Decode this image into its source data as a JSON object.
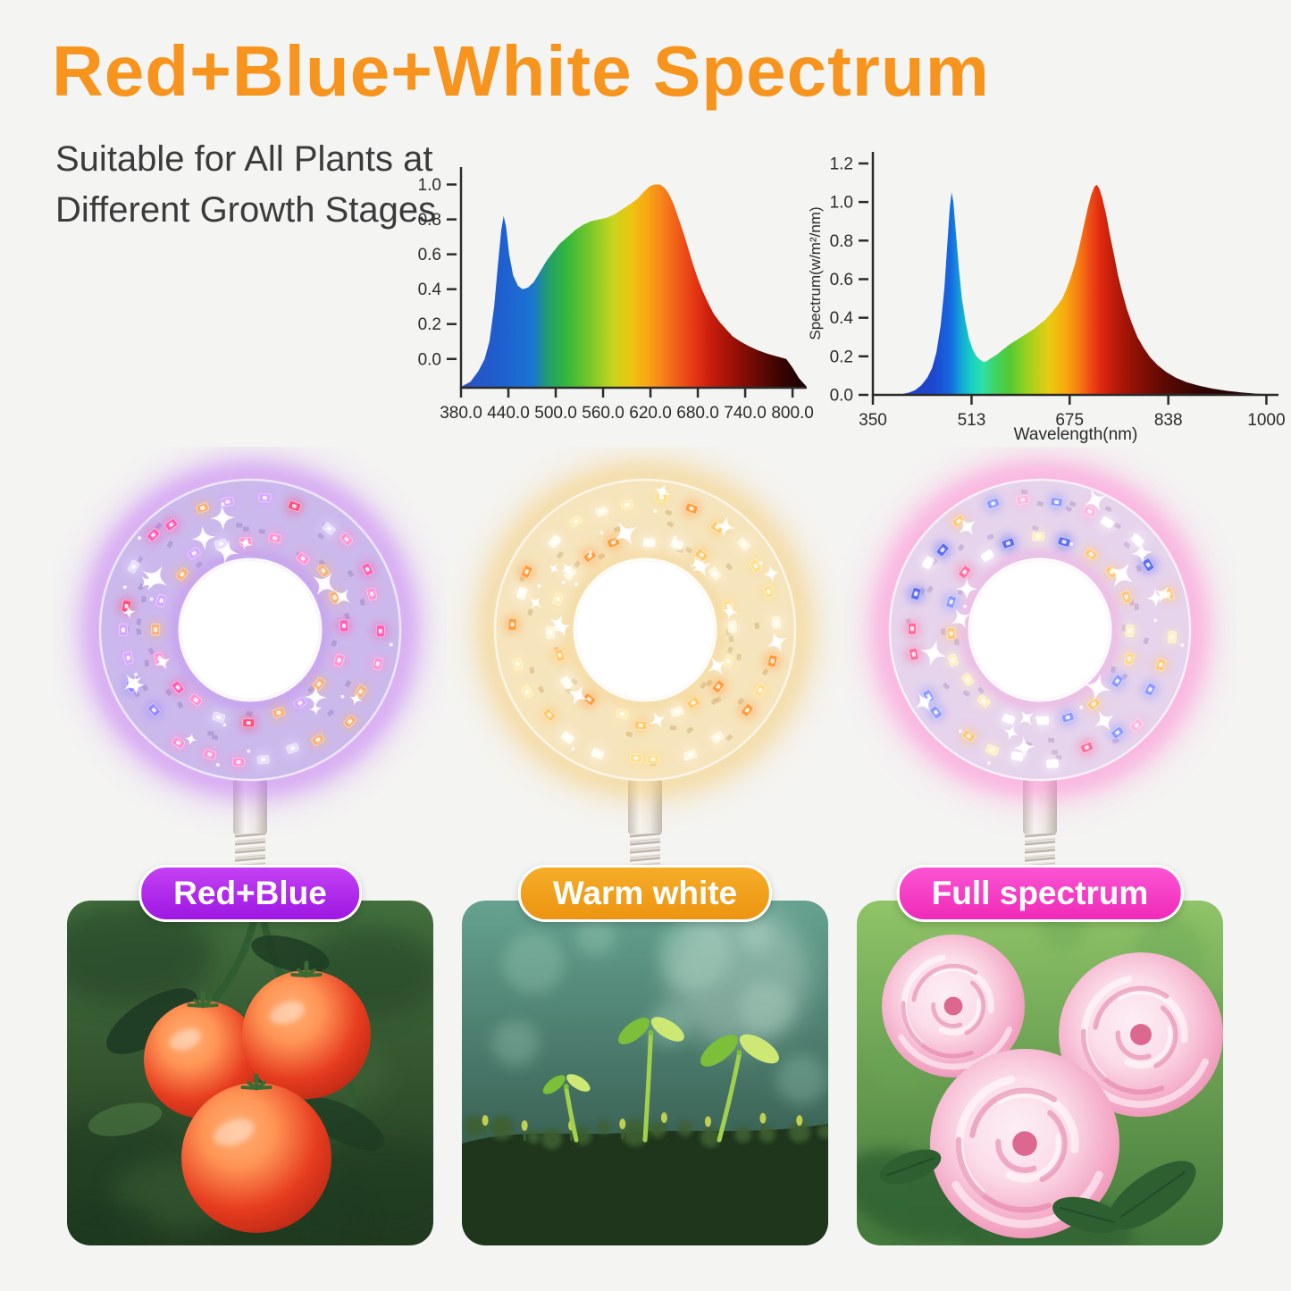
{
  "page": {
    "background": "#f4f4f2"
  },
  "header": {
    "title": "Red+Blue+White Spectrum",
    "title_color": "#f6941e",
    "subtitle": "Suitable for All Plants at Different Growth Stages",
    "subtitle_color": "#3b3b3b"
  },
  "chart_data": [
    {
      "type": "area",
      "title": "",
      "xlabel": "",
      "ylabel": "",
      "x_range": [
        380,
        818
      ],
      "x_ticks": [
        [
          380,
          "380.0"
        ],
        [
          440,
          "440.0"
        ],
        [
          500,
          "500.0"
        ],
        [
          560,
          "560.0"
        ],
        [
          620,
          "620.0"
        ],
        [
          680,
          "680.0"
        ],
        [
          740,
          "740.0"
        ],
        [
          800,
          "800.0"
        ]
      ],
      "y_ticks": [
        [
          0,
          "0.0"
        ],
        [
          0.2,
          "0.2"
        ],
        [
          0.4,
          "0.4"
        ],
        [
          0.6,
          "0.6"
        ],
        [
          0.8,
          "0.8"
        ],
        [
          1.0,
          "1.0"
        ]
      ],
      "ylim": [
        0,
        1.0
      ],
      "baseline": -0.165,
      "grid": false,
      "axis_color": "#2b2b2b",
      "gradient": [
        [
          0,
          "#2b51c0"
        ],
        [
          0.114,
          "#1f5ecf"
        ],
        [
          0.205,
          "#1b74d2"
        ],
        [
          0.256,
          "#23a066"
        ],
        [
          0.308,
          "#35b83a"
        ],
        [
          0.377,
          "#7cc829"
        ],
        [
          0.438,
          "#c6d51d"
        ],
        [
          0.493,
          "#eec311"
        ],
        [
          0.539,
          "#f8a713"
        ],
        [
          0.584,
          "#f5821a"
        ],
        [
          0.63,
          "#ef5a18"
        ],
        [
          0.676,
          "#e53614"
        ],
        [
          0.721,
          "#c91d0d"
        ],
        [
          0.781,
          "#a01207"
        ],
        [
          0.849,
          "#6d0b04"
        ],
        [
          0.918,
          "#3c0502"
        ],
        [
          1,
          "#150201"
        ]
      ],
      "points": [
        [
          380,
          -0.16
        ],
        [
          392,
          -0.13
        ],
        [
          402,
          -0.07
        ],
        [
          410,
          0.0
        ],
        [
          416,
          0.1
        ],
        [
          422,
          0.3
        ],
        [
          427,
          0.55
        ],
        [
          431,
          0.74
        ],
        [
          434,
          0.82
        ],
        [
          437,
          0.76
        ],
        [
          441,
          0.6
        ],
        [
          446,
          0.48
        ],
        [
          452,
          0.42
        ],
        [
          458,
          0.4
        ],
        [
          465,
          0.41
        ],
        [
          472,
          0.44
        ],
        [
          480,
          0.5
        ],
        [
          488,
          0.56
        ],
        [
          496,
          0.61
        ],
        [
          505,
          0.66
        ],
        [
          515,
          0.7
        ],
        [
          525,
          0.74
        ],
        [
          535,
          0.77
        ],
        [
          545,
          0.79
        ],
        [
          555,
          0.8
        ],
        [
          565,
          0.81
        ],
        [
          575,
          0.83
        ],
        [
          585,
          0.86
        ],
        [
          595,
          0.89
        ],
        [
          604,
          0.92
        ],
        [
          612,
          0.96
        ],
        [
          619,
          0.99
        ],
        [
          625,
          1.0
        ],
        [
          632,
          1.0
        ],
        [
          638,
          0.98
        ],
        [
          644,
          0.94
        ],
        [
          650,
          0.88
        ],
        [
          656,
          0.8
        ],
        [
          662,
          0.72
        ],
        [
          668,
          0.63
        ],
        [
          674,
          0.54
        ],
        [
          680,
          0.46
        ],
        [
          686,
          0.39
        ],
        [
          692,
          0.33
        ],
        [
          700,
          0.26
        ],
        [
          708,
          0.21
        ],
        [
          716,
          0.17
        ],
        [
          724,
          0.13
        ],
        [
          734,
          0.1
        ],
        [
          744,
          0.075
        ],
        [
          756,
          0.05
        ],
        [
          768,
          0.03
        ],
        [
          780,
          0.015
        ],
        [
          792,
          0.0
        ],
        [
          800,
          -0.05
        ],
        [
          808,
          -0.11
        ],
        [
          818,
          -0.16
        ]
      ]
    },
    {
      "type": "area",
      "title": "",
      "xlabel": "Wavelength(nm)",
      "ylabel": "Spectrum(w/m²/nm)",
      "x_range": [
        350,
        1020
      ],
      "x_ticks": [
        [
          350,
          "350"
        ],
        [
          513,
          "513"
        ],
        [
          675,
          "675"
        ],
        [
          838,
          "838"
        ],
        [
          1000,
          "1000"
        ]
      ],
      "y_ticks": [
        [
          0,
          "0.0"
        ],
        [
          0.2,
          "0.2"
        ],
        [
          0.4,
          "0.4"
        ],
        [
          0.6,
          "0.6"
        ],
        [
          0.8,
          "0.8"
        ],
        [
          1.0,
          "1.0"
        ],
        [
          1.2,
          "1.2"
        ]
      ],
      "ylim": [
        0,
        1.2
      ],
      "baseline": 0,
      "grid": false,
      "axis_color": "#2b2b2b",
      "gradient": [
        [
          0,
          "#2a3ab2"
        ],
        [
          0.149,
          "#1d47cf"
        ],
        [
          0.191,
          "#1668e0"
        ],
        [
          0.218,
          "#13a8d8"
        ],
        [
          0.243,
          "#17cfc4"
        ],
        [
          0.27,
          "#2fe0a8"
        ],
        [
          0.301,
          "#3ed464"
        ],
        [
          0.337,
          "#52c832"
        ],
        [
          0.382,
          "#9ed21f"
        ],
        [
          0.434,
          "#e8cb11"
        ],
        [
          0.475,
          "#f8a90e"
        ],
        [
          0.507,
          "#f67d12"
        ],
        [
          0.534,
          "#ef4f12"
        ],
        [
          0.561,
          "#e02a10"
        ],
        [
          0.599,
          "#b81a0a"
        ],
        [
          0.651,
          "#8c1005"
        ],
        [
          0.718,
          "#5c0a04"
        ],
        [
          0.807,
          "#330503"
        ],
        [
          1,
          "#0f0101"
        ]
      ],
      "points": [
        [
          350,
          0.0
        ],
        [
          390,
          0.0
        ],
        [
          400,
          0.005
        ],
        [
          410,
          0.012
        ],
        [
          420,
          0.025
        ],
        [
          430,
          0.05
        ],
        [
          440,
          0.09
        ],
        [
          448,
          0.14
        ],
        [
          455,
          0.22
        ],
        [
          462,
          0.36
        ],
        [
          468,
          0.55
        ],
        [
          473,
          0.78
        ],
        [
          477,
          0.97
        ],
        [
          480,
          1.05
        ],
        [
          483,
          1.0
        ],
        [
          487,
          0.85
        ],
        [
          492,
          0.66
        ],
        [
          497,
          0.5
        ],
        [
          503,
          0.38
        ],
        [
          509,
          0.29
        ],
        [
          515,
          0.235
        ],
        [
          521,
          0.2
        ],
        [
          528,
          0.18
        ],
        [
          533,
          0.17
        ],
        [
          538,
          0.175
        ],
        [
          545,
          0.19
        ],
        [
          555,
          0.21
        ],
        [
          565,
          0.235
        ],
        [
          575,
          0.26
        ],
        [
          585,
          0.28
        ],
        [
          595,
          0.3
        ],
        [
          605,
          0.32
        ],
        [
          615,
          0.34
        ],
        [
          625,
          0.365
        ],
        [
          635,
          0.39
        ],
        [
          645,
          0.425
        ],
        [
          655,
          0.465
        ],
        [
          663,
          0.5
        ],
        [
          670,
          0.55
        ],
        [
          677,
          0.61
        ],
        [
          684,
          0.68
        ],
        [
          691,
          0.77
        ],
        [
          698,
          0.87
        ],
        [
          705,
          0.97
        ],
        [
          711,
          1.04
        ],
        [
          716,
          1.08
        ],
        [
          720,
          1.09
        ],
        [
          724,
          1.07
        ],
        [
          729,
          1.02
        ],
        [
          735,
          0.94
        ],
        [
          741,
          0.84
        ],
        [
          748,
          0.73
        ],
        [
          755,
          0.62
        ],
        [
          762,
          0.53
        ],
        [
          770,
          0.44
        ],
        [
          778,
          0.37
        ],
        [
          787,
          0.3
        ],
        [
          797,
          0.245
        ],
        [
          808,
          0.195
        ],
        [
          820,
          0.155
        ],
        [
          834,
          0.12
        ],
        [
          850,
          0.09
        ],
        [
          868,
          0.066
        ],
        [
          888,
          0.048
        ],
        [
          910,
          0.033
        ],
        [
          935,
          0.021
        ],
        [
          960,
          0.012
        ],
        [
          985,
          0.006
        ],
        [
          1000,
          0.004
        ]
      ]
    }
  ],
  "products": [
    {
      "label": "Red+Blue",
      "pill": {
        "c1": "#c441f4",
        "c2": "#9d17e2"
      },
      "ring": {
        "glow": "#c06cf4",
        "body": "#cbb9ec",
        "chip": "#a393cf",
        "leds": [
          "#ff5fb2",
          "#ff93d2",
          "#ffffff",
          "#e6ddff",
          "#ff4f7e",
          "#d7a6ff",
          "#f7b377",
          "#978aff"
        ]
      },
      "photo": {
        "subject": "tomatoes",
        "palette": {
          "bgTop": "#44703f",
          "bgBottom": "#22391f",
          "vine": "#2f5c31",
          "leafDark": "#1d3b23",
          "leafLight": "#527f47",
          "fruit": "#e63c1f",
          "fruitLight": "#ff9555",
          "fruitDark": "#a81f10",
          "calyx": "#3a6b33"
        }
      }
    },
    {
      "label": "Warm white",
      "pill": {
        "c1": "#f6ad28",
        "c2": "#ec9410"
      },
      "ring": {
        "glow": "#f6c96c",
        "body": "#f6e4bd",
        "chip": "#d9bd85",
        "leds": [
          "#fff7dd",
          "#ffedb5",
          "#ffde88",
          "#ff9d3c",
          "#fffcf2",
          "#ffc868"
        ]
      },
      "photo": {
        "subject": "seedlings",
        "palette": {
          "bgTop": "#66a290",
          "bgBottom": "#27473c",
          "bokeh": "#aedcc6",
          "ground": "#1f351c",
          "moss": "#3e6030",
          "bud": "#c9d44f",
          "stem": "#a2d14e",
          "leaf": "#7cbf39",
          "leafLight": "#cde874"
        }
      }
    },
    {
      "label": "Full spectrum",
      "pill": {
        "c1": "#fb55d3",
        "c2": "#ef2ab8"
      },
      "ring": {
        "glow": "#ff7fd2",
        "body": "#e6d3ec",
        "chip": "#bfa6cf",
        "leds": [
          "#ffd88c",
          "#fff0c2",
          "#5e6df2",
          "#ffffff",
          "#ff6fa0",
          "#ffb6e0",
          "#8d9aff",
          "#ffc878"
        ]
      },
      "photo": {
        "subject": "roses",
        "palette": {
          "bgTop": "#8fc468",
          "bgBottom": "#44793c",
          "leaf": "#2e5f31",
          "leafLight": "#67a654",
          "rose": "#f3a6c4",
          "roseLight": "#fbdde9",
          "roseDeep": "#e27ba4",
          "roseCore": "#d85a85"
        }
      }
    }
  ]
}
